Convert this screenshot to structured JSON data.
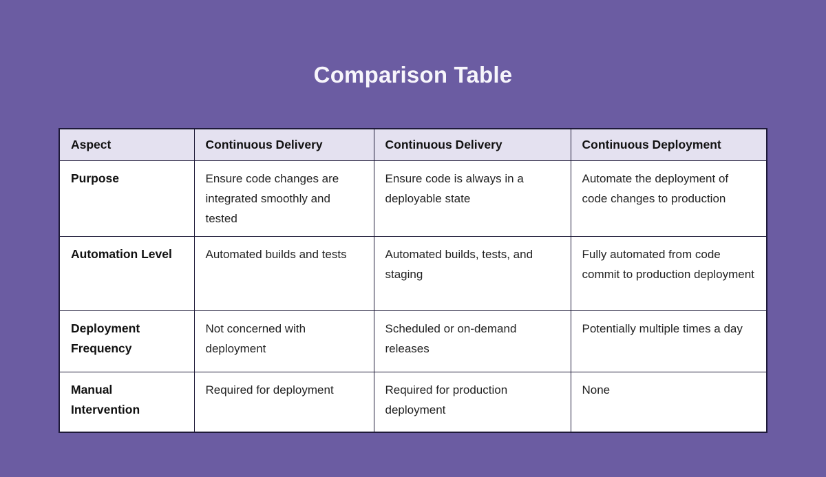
{
  "page": {
    "title": "Comparison Table",
    "background_color": "#6B5CA2",
    "title_color": "#F7F5FB"
  },
  "table": {
    "border_color": "#1E1A38",
    "header_background": "#E4E1F0",
    "body_background": "#FFFFFF",
    "headers": [
      "Aspect",
      "Continuous Delivery",
      "Continuous Delivery",
      "Continuous Deployment"
    ],
    "rows": [
      {
        "aspect": "Purpose",
        "cells": [
          "Ensure code changes are integrated smoothly and tested",
          "Ensure code is always in a deployable state",
          "Automate the deployment of code changes to production"
        ]
      },
      {
        "aspect": "Automation Level",
        "cells": [
          "Automated builds and tests",
          "Automated builds, tests, and staging",
          "Fully automated from code commit to production deployment"
        ]
      },
      {
        "aspect": "Deployment Frequency",
        "cells": [
          "Not concerned with deployment",
          "Scheduled or on-demand releases",
          "Potentially multiple times a day"
        ]
      },
      {
        "aspect": "Manual Intervention",
        "cells": [
          "Required for deployment",
          "Required for production deployment",
          "None"
        ]
      }
    ]
  }
}
